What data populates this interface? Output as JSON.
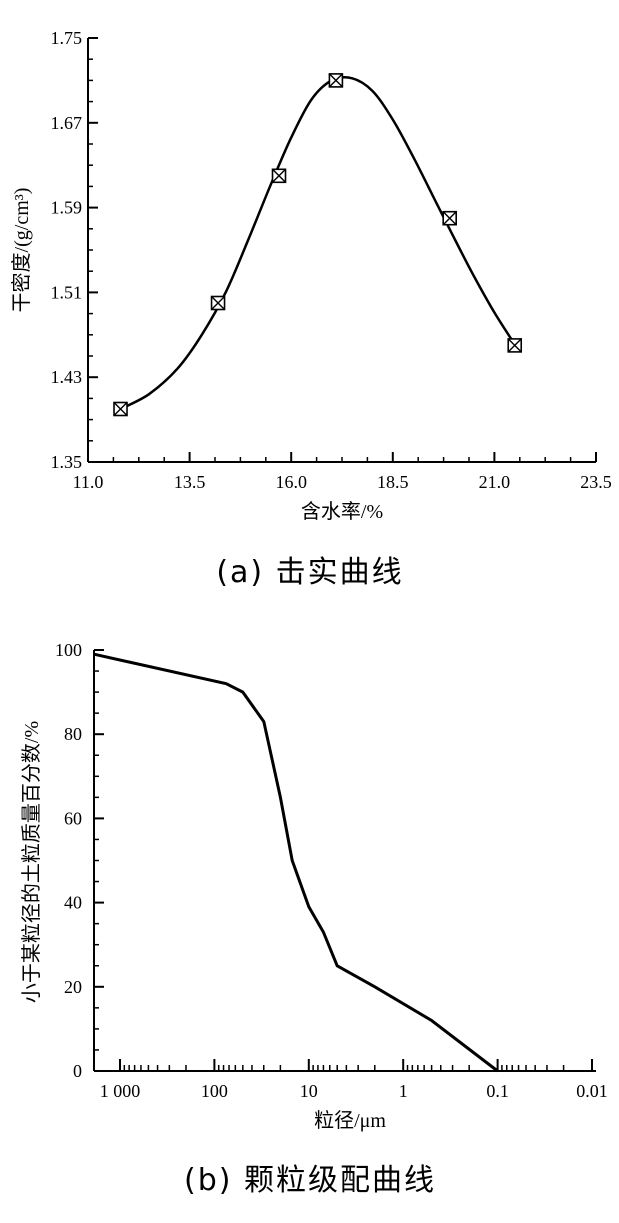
{
  "chart_data": [
    {
      "type": "scatter",
      "xlabel": "含水率/%",
      "ylabel": "干密度/(g/cm³)",
      "caption": "(a) 击实曲线",
      "x_ticks": [
        "11.0",
        "13.5",
        "16.0",
        "18.5",
        "21.0",
        "23.5"
      ],
      "y_ticks": [
        "1.35",
        "1.43",
        "1.51",
        "1.59",
        "1.67",
        "1.75"
      ],
      "xlim": [
        11.0,
        23.5
      ],
      "ylim": [
        1.35,
        1.75
      ],
      "grid": false,
      "series": [
        {
          "marker": "square-x",
          "x": [
            11.8,
            14.2,
            15.7,
            17.1,
            19.9,
            21.5
          ],
          "y": [
            1.4,
            1.5,
            1.62,
            1.71,
            1.58,
            1.46
          ]
        }
      ],
      "fit_curve": {
        "x": [
          11.8,
          12.5,
          13.2,
          13.8,
          14.4,
          15.0,
          15.5,
          16.0,
          16.5,
          17.0,
          17.5,
          18.0,
          18.5,
          19.0,
          19.5,
          20.0,
          20.5,
          21.0,
          21.5
        ],
        "y": [
          1.4,
          1.414,
          1.438,
          1.47,
          1.511,
          1.565,
          1.612,
          1.656,
          1.692,
          1.71,
          1.712,
          1.7,
          1.673,
          1.638,
          1.6,
          1.562,
          1.525,
          1.491,
          1.461
        ]
      }
    },
    {
      "type": "line",
      "xlabel": "粒径/μm",
      "ylabel": "小于某粒径的土粒质量百分数/%",
      "caption": "(b) 颗粒级配曲线",
      "x_scale": "log",
      "x_reversed": true,
      "x_ticks": [
        "1 000",
        "100",
        "10",
        "1",
        "0.1",
        "0.01"
      ],
      "y_ticks": [
        "0",
        "20",
        "40",
        "60",
        "80",
        "100"
      ],
      "xlim": [
        2000,
        0.01
      ],
      "ylim": [
        0,
        100
      ],
      "grid": false,
      "series": [
        {
          "x": [
            2000,
            75,
            50,
            30,
            20,
            15,
            10,
            7,
            5,
            2,
            0.5,
            0.1
          ],
          "y": [
            99,
            92,
            90,
            83,
            65,
            50,
            39,
            33,
            25,
            20,
            12,
            0
          ]
        }
      ]
    }
  ]
}
